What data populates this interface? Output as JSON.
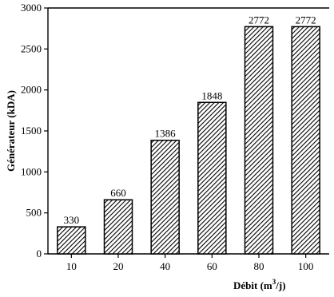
{
  "chart_data": {
    "type": "bar",
    "categories": [
      "10",
      "20",
      "40",
      "60",
      "80",
      "100"
    ],
    "values": [
      330,
      660,
      1386,
      1848,
      2772,
      2772
    ],
    "data_labels": [
      "330",
      "660",
      "1386",
      "1848",
      "2772",
      "2772"
    ],
    "ylabel": "Générateur (kDA)",
    "xlabel": {
      "main": "Débit (m",
      "sup": "3",
      "tail": "/j)"
    },
    "ylim": [
      0,
      3000
    ],
    "yticks": [
      0,
      500,
      1000,
      1500,
      2000,
      2500,
      3000
    ],
    "grid": false,
    "legend": "none",
    "bar_pattern": "diagonal-hatch",
    "bar_color": "#000000"
  }
}
